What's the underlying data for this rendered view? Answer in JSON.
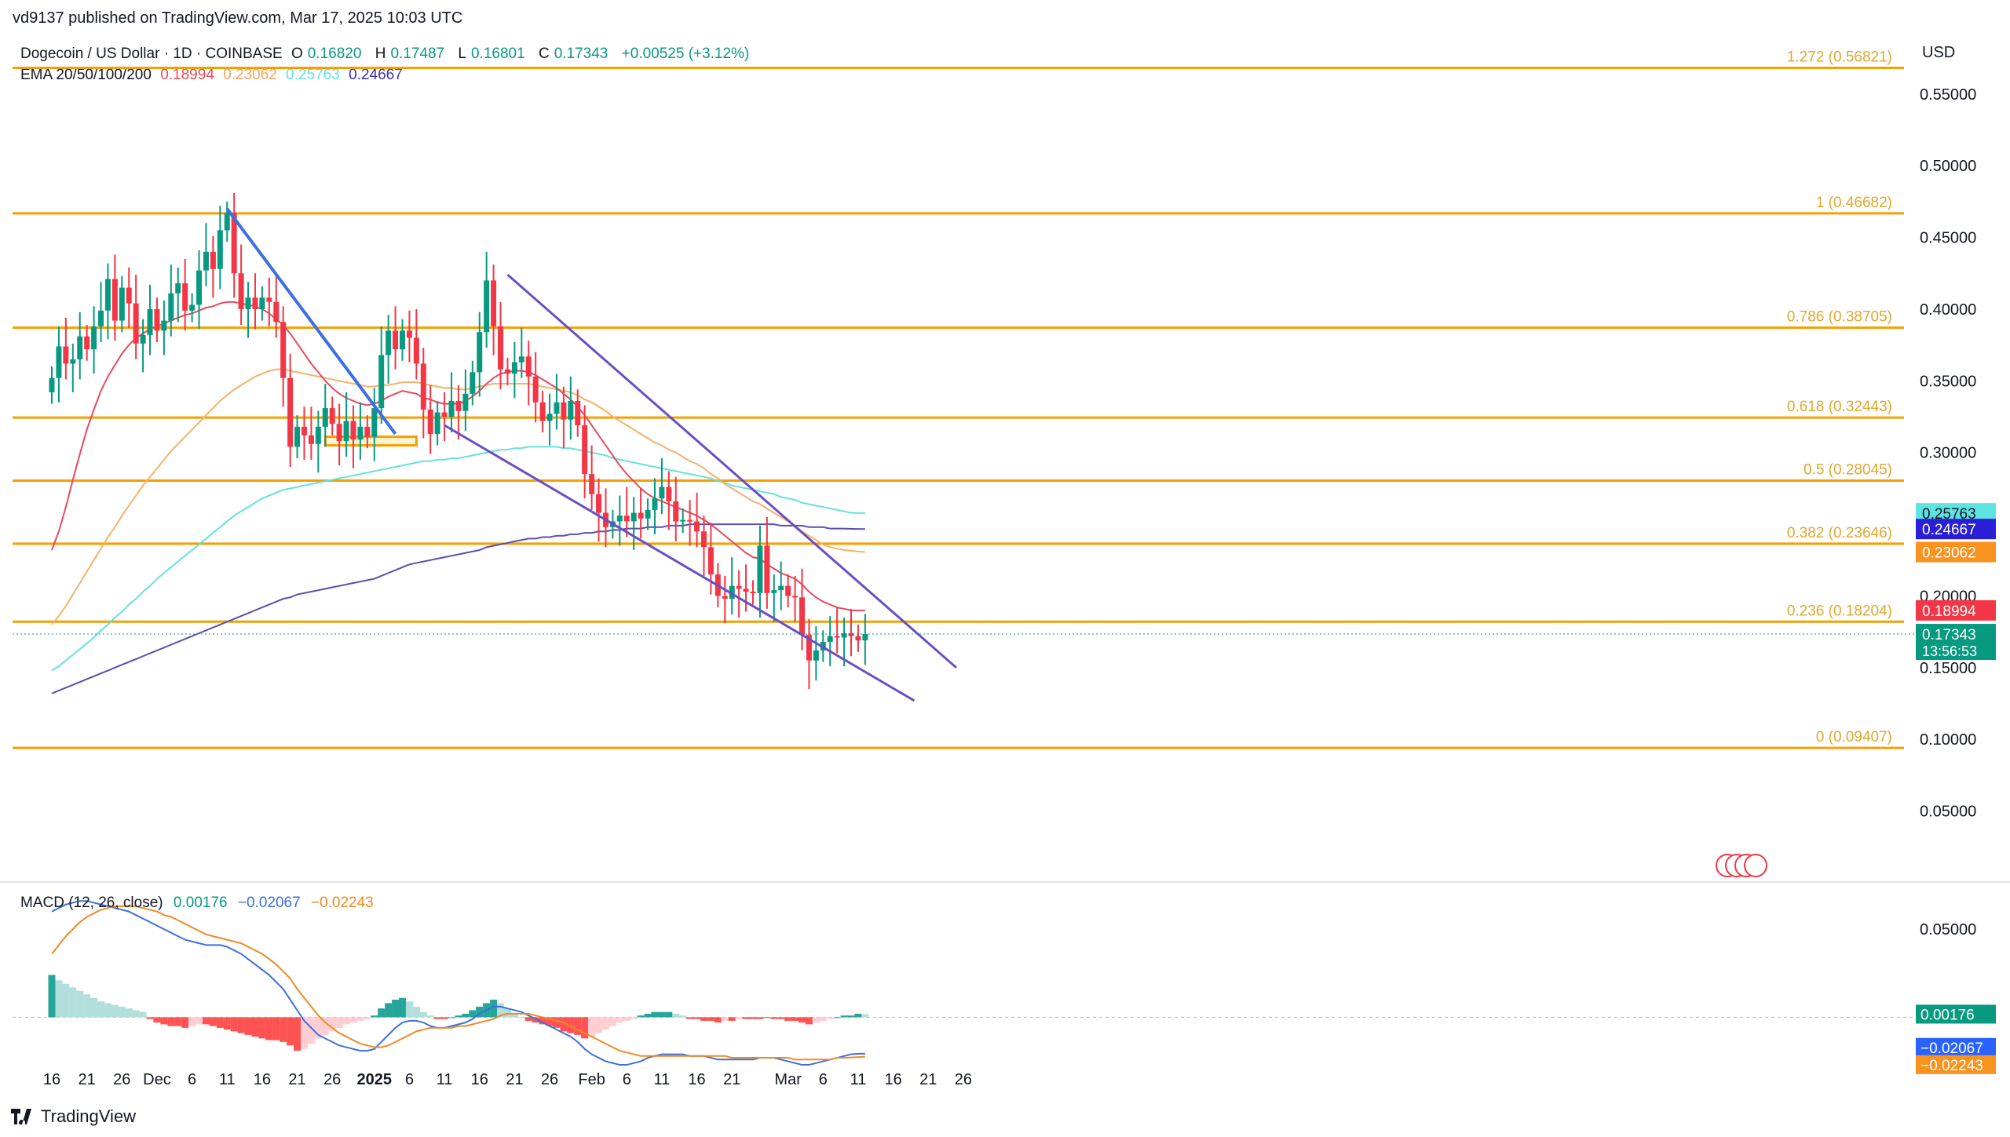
{
  "publisher": "vd9137 published on TradingView.com, Mar 17, 2025 10:03 UTC",
  "legend": {
    "symbol": "Dogecoin / US Dollar · 1D · COINBASE",
    "o_label": "O",
    "o": "0.16820",
    "h_label": "H",
    "h": "0.17487",
    "l_label": "L",
    "l": "0.16801",
    "c_label": "C",
    "c": "0.17343",
    "change": "+0.00525 (+3.12%)",
    "ema_label": "EMA 20/50/100/200",
    "ema_values": [
      {
        "value": "0.18994",
        "color": "#e84a5f"
      },
      {
        "value": "0.23062",
        "color": "#f7a35c"
      },
      {
        "value": "0.25763",
        "color": "#5ee3e3"
      },
      {
        "value": "0.24667",
        "color": "#3b2fbf"
      }
    ]
  },
  "currency": "USD",
  "macd_legend": {
    "label": "MACD (12, 26, close)",
    "hist": "0.00176",
    "macd": "−0.02067",
    "signal": "−0.02243"
  },
  "brand": "TradingView",
  "colors": {
    "up": "#089981",
    "down": "#f23645",
    "fib": "#f59f00",
    "fibText": "#e0a82e",
    "ema20": "#e84a5f",
    "ema50": "#f4b26a",
    "ema100": "#66e0e0",
    "ema200": "#5a4fb0",
    "channel": "#6a4fc4",
    "downtrend": "#3d6fe0",
    "macd": "#3d6fe0",
    "signal": "#f08a24"
  },
  "chart_data": {
    "type": "candlestick",
    "title": "Dogecoin / US Dollar · 1D · COINBASE",
    "ylabel": "USD",
    "ylim": [
      0.0,
      0.58
    ],
    "y_ticks": [
      "0.55000",
      "0.50000",
      "0.45000",
      "0.40000",
      "0.35000",
      "0.30000",
      "0.25000",
      "0.20000",
      "0.15000",
      "0.10000",
      "0.05000"
    ],
    "y_tick_values": [
      0.55,
      0.5,
      0.45,
      0.4,
      0.35,
      0.3,
      0.25,
      0.2,
      0.15,
      0.1,
      0.05
    ],
    "x_ticks": [
      "16",
      "21",
      "26",
      "Dec",
      "6",
      "11",
      "16",
      "21",
      "26",
      "2025",
      "6",
      "11",
      "16",
      "21",
      "26",
      "Feb",
      "6",
      "11",
      "16",
      "21",
      "Mar",
      "6",
      "11",
      "16",
      "21",
      "26"
    ],
    "x_tick_days": [
      0,
      5,
      10,
      15,
      20,
      25,
      30,
      35,
      40,
      46,
      51,
      56,
      61,
      66,
      71,
      77,
      82,
      87,
      92,
      97,
      105,
      110,
      115,
      120,
      125,
      130
    ],
    "fib_levels": [
      {
        "label": "1.272 (0.56821)",
        "value": 0.56821
      },
      {
        "label": "1 (0.46682)",
        "value": 0.46682
      },
      {
        "label": "0.786 (0.38705)",
        "value": 0.38705
      },
      {
        "label": "0.618 (0.32443)",
        "value": 0.32443
      },
      {
        "label": "0.5 (0.28045)",
        "value": 0.28045
      },
      {
        "label": "0.382 (0.23646)",
        "value": 0.23646
      },
      {
        "label": "0.236 (0.18204)",
        "value": 0.18204
      },
      {
        "label": "0 (0.09407)",
        "value": 0.09407
      }
    ],
    "price_badges": [
      {
        "label": "0.25763",
        "value": 0.25763,
        "bg": "#5ee3e3",
        "fg": "#131722"
      },
      {
        "label": "0.24667",
        "value": 0.24667,
        "bg": "#2a1fd6",
        "fg": "#ffffff"
      },
      {
        "label": "0.23062",
        "value": 0.23062,
        "bg": "#f7931e",
        "fg": "#ffffff"
      },
      {
        "label": "0.18994",
        "value": 0.18994,
        "bg": "#f23645",
        "fg": "#ffffff"
      },
      {
        "label": "0.17343",
        "value": 0.17343,
        "bg": "#089981",
        "fg": "#ffffff",
        "sub": "13:56:53"
      }
    ],
    "closes": [
      0.352,
      0.374,
      0.362,
      0.365,
      0.381,
      0.372,
      0.388,
      0.399,
      0.421,
      0.392,
      0.415,
      0.404,
      0.376,
      0.382,
      0.4,
      0.385,
      0.392,
      0.411,
      0.418,
      0.399,
      0.403,
      0.427,
      0.44,
      0.428,
      0.455,
      0.467,
      0.425,
      0.4,
      0.408,
      0.4,
      0.408,
      0.405,
      0.391,
      0.352,
      0.304,
      0.318,
      0.312,
      0.306,
      0.318,
      0.331,
      0.32,
      0.308,
      0.322,
      0.309,
      0.318,
      0.311,
      0.331,
      0.368,
      0.385,
      0.372,
      0.385,
      0.38,
      0.362,
      0.33,
      0.313,
      0.328,
      0.325,
      0.336,
      0.329,
      0.341,
      0.356,
      0.384,
      0.42,
      0.388,
      0.358,
      0.355,
      0.363,
      0.367,
      0.353,
      0.335,
      0.322,
      0.327,
      0.335,
      0.323,
      0.336,
      0.319,
      0.285,
      0.271,
      0.258,
      0.248,
      0.252,
      0.256,
      0.252,
      0.258,
      0.254,
      0.26,
      0.268,
      0.276,
      0.266,
      0.252,
      0.253,
      0.252,
      0.245,
      0.234,
      0.215,
      0.2,
      0.198,
      0.207,
      0.205,
      0.203,
      0.202,
      0.235,
      0.202,
      0.204,
      0.207,
      0.2,
      0.199,
      0.173,
      0.155,
      0.162,
      0.168,
      0.172,
      0.171,
      0.174,
      0.172,
      0.169,
      0.17343
    ],
    "ema": {
      "ema20": [
        0.232,
        0.245,
        0.262,
        0.281,
        0.299,
        0.316,
        0.33,
        0.343,
        0.353,
        0.361,
        0.369,
        0.375,
        0.38,
        0.383,
        0.386,
        0.388,
        0.39,
        0.392,
        0.394,
        0.396,
        0.397,
        0.399,
        0.401,
        0.402,
        0.404,
        0.405,
        0.405,
        0.404,
        0.403,
        0.402,
        0.4,
        0.397,
        0.393,
        0.389,
        0.383,
        0.376,
        0.369,
        0.362,
        0.356,
        0.35,
        0.345,
        0.341,
        0.338,
        0.336,
        0.334,
        0.333,
        0.334,
        0.336,
        0.339,
        0.341,
        0.343,
        0.342,
        0.341,
        0.338,
        0.337,
        0.335,
        0.334,
        0.334,
        0.334,
        0.336,
        0.339,
        0.343,
        0.348,
        0.352,
        0.355,
        0.356,
        0.357,
        0.357,
        0.356,
        0.354,
        0.351,
        0.348,
        0.345,
        0.341,
        0.337,
        0.332,
        0.326,
        0.319,
        0.312,
        0.305,
        0.298,
        0.291,
        0.285,
        0.28,
        0.275,
        0.271,
        0.268,
        0.266,
        0.264,
        0.262,
        0.26,
        0.258,
        0.256,
        0.253,
        0.25,
        0.246,
        0.242,
        0.238,
        0.234,
        0.23,
        0.227,
        0.226,
        0.222,
        0.219,
        0.216,
        0.214,
        0.212,
        0.208,
        0.203,
        0.199,
        0.196,
        0.194,
        0.192,
        0.191,
        0.19,
        0.1899,
        0.18994
      ],
      "ema50": [
        0.18,
        0.186,
        0.193,
        0.201,
        0.209,
        0.217,
        0.225,
        0.233,
        0.241,
        0.248,
        0.256,
        0.263,
        0.27,
        0.277,
        0.283,
        0.289,
        0.295,
        0.301,
        0.306,
        0.311,
        0.316,
        0.321,
        0.326,
        0.331,
        0.336,
        0.34,
        0.344,
        0.347,
        0.35,
        0.353,
        0.355,
        0.357,
        0.358,
        0.358,
        0.357,
        0.356,
        0.355,
        0.354,
        0.353,
        0.352,
        0.351,
        0.35,
        0.349,
        0.348,
        0.347,
        0.346,
        0.346,
        0.347,
        0.347,
        0.348,
        0.349,
        0.349,
        0.349,
        0.348,
        0.347,
        0.346,
        0.345,
        0.345,
        0.344,
        0.344,
        0.345,
        0.346,
        0.347,
        0.348,
        0.348,
        0.348,
        0.348,
        0.348,
        0.348,
        0.347,
        0.346,
        0.345,
        0.344,
        0.343,
        0.342,
        0.34,
        0.337,
        0.335,
        0.332,
        0.329,
        0.325,
        0.322,
        0.319,
        0.316,
        0.313,
        0.31,
        0.307,
        0.305,
        0.302,
        0.3,
        0.297,
        0.294,
        0.292,
        0.289,
        0.285,
        0.282,
        0.278,
        0.275,
        0.272,
        0.269,
        0.266,
        0.264,
        0.261,
        0.258,
        0.255,
        0.252,
        0.249,
        0.245,
        0.242,
        0.239,
        0.236,
        0.234,
        0.233,
        0.232,
        0.2315,
        0.231,
        0.23062
      ],
      "ema100": [
        0.148,
        0.151,
        0.155,
        0.159,
        0.163,
        0.167,
        0.171,
        0.176,
        0.18,
        0.185,
        0.189,
        0.194,
        0.198,
        0.203,
        0.207,
        0.212,
        0.216,
        0.22,
        0.224,
        0.228,
        0.232,
        0.236,
        0.24,
        0.244,
        0.248,
        0.252,
        0.256,
        0.259,
        0.262,
        0.265,
        0.268,
        0.27,
        0.272,
        0.274,
        0.275,
        0.276,
        0.277,
        0.278,
        0.279,
        0.28,
        0.281,
        0.282,
        0.283,
        0.284,
        0.285,
        0.286,
        0.287,
        0.288,
        0.289,
        0.29,
        0.291,
        0.292,
        0.293,
        0.294,
        0.294,
        0.295,
        0.295,
        0.296,
        0.296,
        0.297,
        0.298,
        0.299,
        0.3,
        0.301,
        0.302,
        0.302,
        0.303,
        0.303,
        0.304,
        0.304,
        0.304,
        0.304,
        0.304,
        0.303,
        0.303,
        0.302,
        0.301,
        0.3,
        0.299,
        0.298,
        0.296,
        0.295,
        0.294,
        0.293,
        0.292,
        0.291,
        0.29,
        0.289,
        0.288,
        0.287,
        0.286,
        0.285,
        0.284,
        0.283,
        0.282,
        0.28,
        0.279,
        0.277,
        0.276,
        0.275,
        0.274,
        0.273,
        0.272,
        0.271,
        0.269,
        0.268,
        0.267,
        0.265,
        0.264,
        0.263,
        0.262,
        0.261,
        0.26,
        0.259,
        0.258,
        0.2578,
        0.25763
      ],
      "ema200": [
        0.132,
        0.134,
        0.136,
        0.138,
        0.14,
        0.142,
        0.144,
        0.146,
        0.148,
        0.15,
        0.152,
        0.154,
        0.156,
        0.158,
        0.16,
        0.162,
        0.164,
        0.166,
        0.168,
        0.17,
        0.172,
        0.174,
        0.176,
        0.178,
        0.18,
        0.182,
        0.184,
        0.186,
        0.188,
        0.19,
        0.192,
        0.194,
        0.196,
        0.198,
        0.199,
        0.201,
        0.202,
        0.203,
        0.204,
        0.205,
        0.206,
        0.207,
        0.208,
        0.209,
        0.21,
        0.211,
        0.212,
        0.214,
        0.216,
        0.218,
        0.22,
        0.222,
        0.223,
        0.224,
        0.225,
        0.226,
        0.227,
        0.228,
        0.229,
        0.23,
        0.231,
        0.232,
        0.234,
        0.235,
        0.236,
        0.237,
        0.238,
        0.239,
        0.24,
        0.24,
        0.241,
        0.241,
        0.242,
        0.242,
        0.243,
        0.243,
        0.244,
        0.244,
        0.245,
        0.245,
        0.246,
        0.246,
        0.247,
        0.247,
        0.247,
        0.248,
        0.248,
        0.248,
        0.249,
        0.249,
        0.249,
        0.25,
        0.25,
        0.25,
        0.25,
        0.25,
        0.25,
        0.25,
        0.25,
        0.25,
        0.25,
        0.25,
        0.25,
        0.25,
        0.249,
        0.249,
        0.249,
        0.249,
        0.248,
        0.248,
        0.248,
        0.247,
        0.247,
        0.247,
        0.2468,
        0.2467,
        0.24667
      ]
    },
    "channel_upper": {
      "day": [
        [
          65,
          0.424
        ],
        [
          129,
          0.15
        ]
      ]
    },
    "channel_lower": {
      "day": [
        [
          56,
          0.319
        ],
        [
          123,
          0.127
        ]
      ]
    },
    "downtrend_line": {
      "day": [
        [
          25,
          0.47
        ],
        [
          49,
          0.313
        ]
      ]
    },
    "support_box": {
      "from_day": 39,
      "to_day": 52,
      "low": 0.305,
      "high": 0.311
    },
    "macd": {
      "ylim": [
        -0.035,
        0.075
      ],
      "y_ticks": [
        "0.05000"
      ],
      "y_tick_values": [
        0.05
      ],
      "badges": [
        {
          "label": "0.00176",
          "value": 0.00176,
          "bg": "#089981"
        },
        {
          "label": "−0.02067",
          "value": -0.02067,
          "bg": "#2962ff"
        },
        {
          "label": "−0.02243",
          "value": -0.02243,
          "bg": "#f7931e"
        }
      ],
      "histogram": [
        0.024,
        0.021,
        0.019,
        0.017,
        0.015,
        0.013,
        0.011,
        0.009,
        0.008,
        0.007,
        0.006,
        0.005,
        0.004,
        0.003,
        -0.001,
        -0.003,
        -0.004,
        -0.005,
        -0.005,
        -0.006,
        -0.005,
        -0.004,
        -0.004,
        -0.005,
        -0.006,
        -0.007,
        -0.008,
        -0.009,
        -0.01,
        -0.011,
        -0.012,
        -0.013,
        -0.013,
        -0.014,
        -0.016,
        -0.019,
        -0.018,
        -0.015,
        -0.012,
        -0.01,
        -0.008,
        -0.006,
        -0.004,
        -0.003,
        -0.002,
        -0.001,
        0.001,
        0.005,
        0.008,
        0.01,
        0.011,
        0.009,
        0.006,
        0.003,
        0.001,
        -0.001,
        -0.001,
        0.0,
        0.001,
        0.002,
        0.004,
        0.006,
        0.008,
        0.01,
        0.008,
        0.005,
        0.002,
        0.0,
        -0.002,
        -0.003,
        -0.004,
        -0.005,
        -0.006,
        -0.008,
        -0.009,
        -0.01,
        -0.012,
        -0.011,
        -0.009,
        -0.007,
        -0.005,
        -0.003,
        -0.002,
        -0.001,
        0.001,
        0.002,
        0.003,
        0.003,
        0.003,
        0.002,
        0.001,
        -0.001,
        -0.001,
        -0.002,
        -0.002,
        -0.003,
        -0.002,
        -0.002,
        -0.001,
        -0.001,
        -0.001,
        -0.001,
        0.0,
        -0.001,
        -0.001,
        -0.002,
        -0.002,
        -0.003,
        -0.004,
        -0.003,
        -0.002,
        -0.001,
        0.0,
        0.001,
        0.001,
        0.002,
        0.00176
      ],
      "macd_line": [
        0.06,
        0.062,
        0.064,
        0.065,
        0.066,
        0.066,
        0.065,
        0.064,
        0.063,
        0.062,
        0.061,
        0.06,
        0.058,
        0.056,
        0.054,
        0.052,
        0.05,
        0.048,
        0.046,
        0.044,
        0.043,
        0.042,
        0.041,
        0.041,
        0.041,
        0.04,
        0.038,
        0.036,
        0.033,
        0.03,
        0.027,
        0.024,
        0.02,
        0.016,
        0.01,
        0.004,
        -0.002,
        -0.006,
        -0.01,
        -0.012,
        -0.014,
        -0.016,
        -0.017,
        -0.018,
        -0.019,
        -0.019,
        -0.018,
        -0.014,
        -0.01,
        -0.006,
        -0.003,
        -0.002,
        -0.002,
        -0.003,
        -0.005,
        -0.006,
        -0.006,
        -0.005,
        -0.004,
        -0.003,
        -0.001,
        0.002,
        0.004,
        0.006,
        0.006,
        0.005,
        0.004,
        0.003,
        0.001,
        -0.001,
        -0.003,
        -0.005,
        -0.007,
        -0.009,
        -0.011,
        -0.014,
        -0.018,
        -0.021,
        -0.023,
        -0.025,
        -0.026,
        -0.027,
        -0.027,
        -0.026,
        -0.025,
        -0.023,
        -0.022,
        -0.021,
        -0.021,
        -0.021,
        -0.021,
        -0.022,
        -0.022,
        -0.022,
        -0.023,
        -0.024,
        -0.024,
        -0.024,
        -0.024,
        -0.024,
        -0.024,
        -0.023,
        -0.023,
        -0.023,
        -0.024,
        -0.025,
        -0.026,
        -0.027,
        -0.027,
        -0.026,
        -0.025,
        -0.024,
        -0.023,
        -0.022,
        -0.021,
        -0.0207,
        -0.02067
      ],
      "signal_line": [
        0.036,
        0.041,
        0.046,
        0.05,
        0.054,
        0.057,
        0.059,
        0.061,
        0.062,
        0.063,
        0.063,
        0.063,
        0.063,
        0.062,
        0.061,
        0.06,
        0.058,
        0.057,
        0.055,
        0.053,
        0.051,
        0.049,
        0.047,
        0.046,
        0.045,
        0.044,
        0.043,
        0.042,
        0.04,
        0.038,
        0.036,
        0.033,
        0.03,
        0.026,
        0.022,
        0.016,
        0.011,
        0.006,
        0.001,
        -0.003,
        -0.006,
        -0.009,
        -0.011,
        -0.013,
        -0.015,
        -0.016,
        -0.017,
        -0.017,
        -0.016,
        -0.014,
        -0.012,
        -0.01,
        -0.008,
        -0.007,
        -0.006,
        -0.006,
        -0.006,
        -0.006,
        -0.005,
        -0.005,
        -0.004,
        -0.003,
        -0.002,
        -0.001,
        0.001,
        0.002,
        0.002,
        0.002,
        0.002,
        0.001,
        0.0,
        -0.001,
        -0.002,
        -0.003,
        -0.005,
        -0.007,
        -0.009,
        -0.011,
        -0.013,
        -0.015,
        -0.017,
        -0.019,
        -0.02,
        -0.021,
        -0.022,
        -0.022,
        -0.022,
        -0.022,
        -0.022,
        -0.022,
        -0.022,
        -0.022,
        -0.022,
        -0.022,
        -0.022,
        -0.022,
        -0.022,
        -0.023,
        -0.023,
        -0.023,
        -0.023,
        -0.023,
        -0.023,
        -0.023,
        -0.023,
        -0.023,
        -0.024,
        -0.024,
        -0.024,
        -0.024,
        -0.024,
        -0.024,
        -0.023,
        -0.023,
        -0.0228,
        -0.0226,
        -0.02243
      ]
    }
  }
}
